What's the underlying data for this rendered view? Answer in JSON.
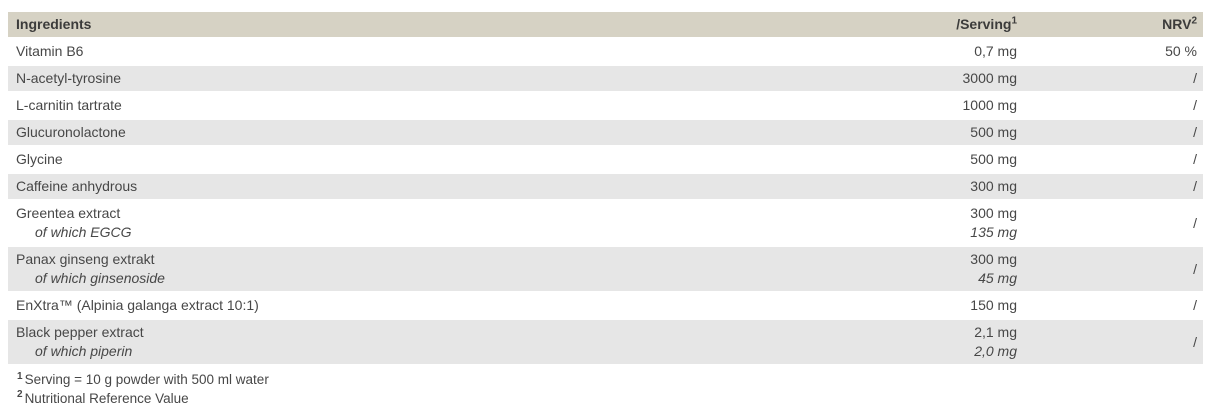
{
  "colors": {
    "header_bg": "#d6d2c4",
    "row_stripe_bg": "#e6e6e6",
    "row_bg": "#ffffff",
    "body_text": "#474747",
    "header_text": "#3c3c3b"
  },
  "table": {
    "header": {
      "ingredients": "Ingredients",
      "serving": "/Serving",
      "serving_sup": "1",
      "nrv": "NRV",
      "nrv_sup": "2"
    },
    "rows": [
      {
        "name": "Vitamin B6",
        "serving": "0,7 mg",
        "nrv": "50 %"
      },
      {
        "name": "N-acetyl-tyrosine",
        "serving": "3000 mg",
        "nrv": "/"
      },
      {
        "name": "L-carnitin tartrate",
        "serving": "1000 mg",
        "nrv": "/"
      },
      {
        "name": "Glucuronolactone",
        "serving": "500 mg",
        "nrv": "/"
      },
      {
        "name": "Glycine",
        "serving": "500 mg",
        "nrv": "/"
      },
      {
        "name": "Caffeine anhydrous",
        "serving": "300 mg",
        "nrv": "/"
      },
      {
        "name": "Greentea extract",
        "sub_name": "of which EGCG",
        "serving": "300 mg",
        "sub_serving": "135 mg",
        "nrv": "/"
      },
      {
        "name": "Panax ginseng extrakt",
        "sub_name": "of which ginsenoside",
        "serving": "300 mg",
        "sub_serving": "45 mg",
        "nrv": "/"
      },
      {
        "name": "EnXtra™ (Alpinia galanga extract 10:1)",
        "serving": "150 mg",
        "nrv": "/"
      },
      {
        "name": "Black pepper extract",
        "sub_name": "of which piperin",
        "serving": "2,1 mg",
        "sub_serving": "2,0 mg",
        "nrv": "/"
      }
    ]
  },
  "footnotes": [
    {
      "sup": "1",
      "text": "Serving = 10 g powder with 500 ml water"
    },
    {
      "sup": "2",
      "text": "Nutritional Reference Value"
    }
  ],
  "chart_data": {
    "type": "table",
    "columns": [
      "Ingredients",
      "/Serving¹",
      "NRV²"
    ],
    "rows": [
      [
        "Vitamin B6",
        "0,7 mg",
        "50 %"
      ],
      [
        "N-acetyl-tyrosine",
        "3000 mg",
        "/"
      ],
      [
        "L-carnitin tartrate",
        "1000 mg",
        "/"
      ],
      [
        "Glucuronolactone",
        "500 mg",
        "/"
      ],
      [
        "Glycine",
        "500 mg",
        "/"
      ],
      [
        "Caffeine anhydrous",
        "300 mg",
        "/"
      ],
      [
        "Greentea extract",
        "300 mg",
        "/"
      ],
      [
        "of which EGCG",
        "135 mg",
        ""
      ],
      [
        "Panax ginseng extrakt",
        "300 mg",
        "/"
      ],
      [
        "of which ginsenoside",
        "45 mg",
        ""
      ],
      [
        "EnXtra™ (Alpinia galanga extract 10:1)",
        "150 mg",
        "/"
      ],
      [
        "Black pepper extract",
        "2,1 mg",
        "/"
      ],
      [
        "of which piperin",
        "2,0 mg",
        ""
      ]
    ]
  }
}
